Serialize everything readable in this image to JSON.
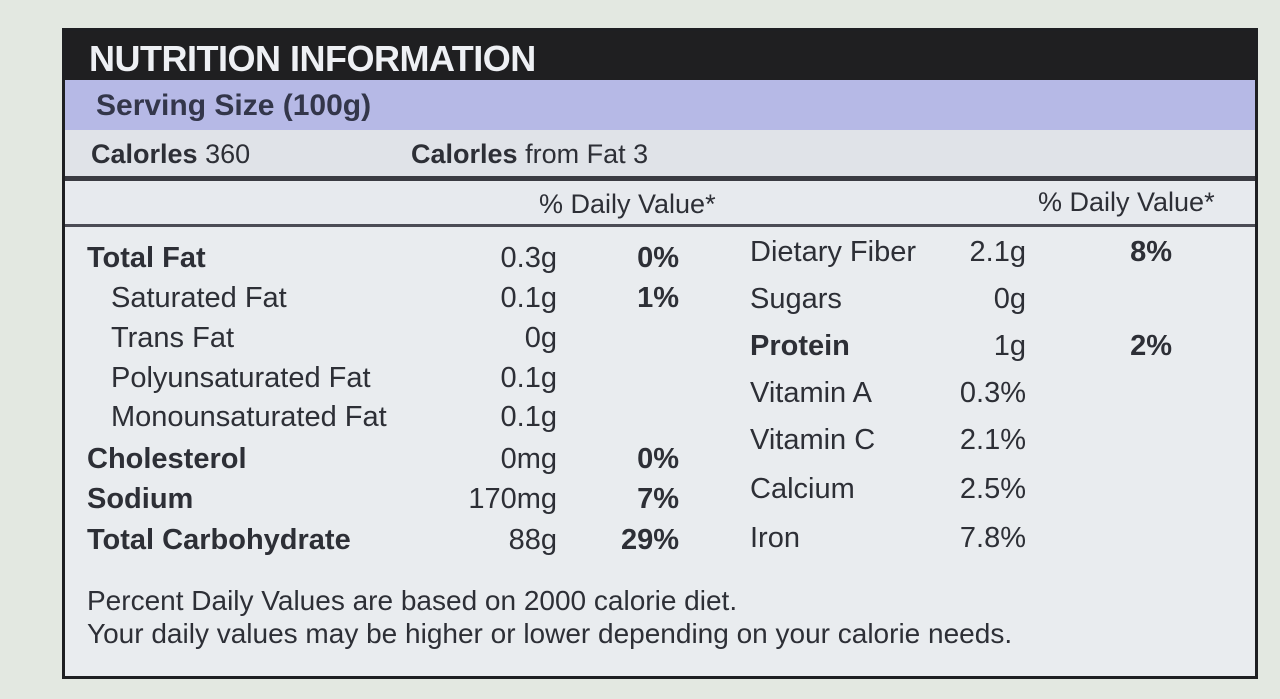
{
  "header": {
    "title": "NUTRITION INFORMATION"
  },
  "serving": {
    "label": "Serving Size (100g)"
  },
  "calories": {
    "label": "Calorles",
    "value": "360",
    "from_fat_label": "Calorles",
    "from_fat_rest": "from Fat 3"
  },
  "daily_value_header": {
    "left": "% Daily Value*",
    "right": "% Daily Value*"
  },
  "left_nutrients": [
    {
      "name": "Total Fat",
      "amount": "0.3g",
      "dv": "0%"
    },
    {
      "name": "Saturated Fat",
      "amount": "0.1g",
      "dv": "1%"
    },
    {
      "name": "Trans Fat",
      "amount": "0g",
      "dv": ""
    },
    {
      "name": "Polyunsaturated Fat",
      "amount": "0.1g",
      "dv": ""
    },
    {
      "name": "Monounsaturated Fat",
      "amount": "0.1g",
      "dv": ""
    },
    {
      "name": "Cholesterol",
      "amount": "0mg",
      "dv": "0%"
    },
    {
      "name": "Sodium",
      "amount": "170mg",
      "dv": "7%"
    },
    {
      "name": "Total Carbohydrate",
      "amount": "88g",
      "dv": "29%"
    }
  ],
  "right_nutrients": [
    {
      "name": "Dietary Fiber",
      "amount": "2.1g",
      "dv": "8%"
    },
    {
      "name": "Sugars",
      "amount": "0g",
      "dv": ""
    },
    {
      "name": "Protein",
      "amount": "1g",
      "dv": "2%"
    },
    {
      "name": "Vitamin A",
      "amount": "0.3%",
      "dv": ""
    },
    {
      "name": "Vitamin C",
      "amount": "2.1%",
      "dv": ""
    },
    {
      "name": "Calcium",
      "amount": "2.5%",
      "dv": ""
    },
    {
      "name": "Iron",
      "amount": "7.8%",
      "dv": ""
    }
  ],
  "footnote": {
    "line1": "Percent Daily Values are based on 2000 calorie diet.",
    "line2": "Your daily values may be higher or lower depending on your calorie needs."
  }
}
